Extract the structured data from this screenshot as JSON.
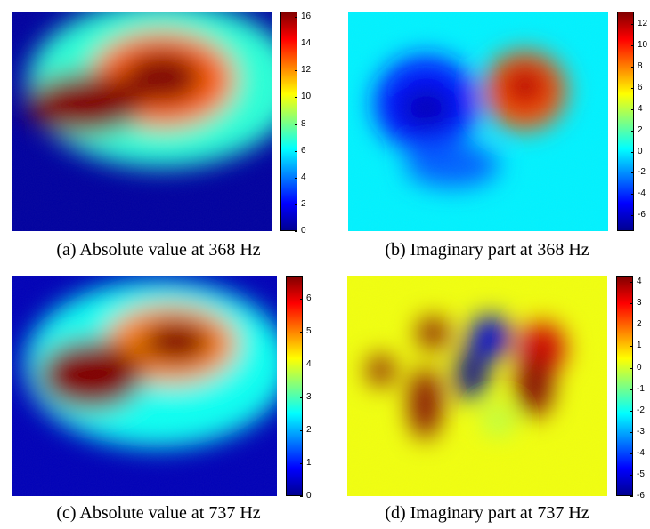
{
  "colormap": [
    "#00008f",
    "#0000ff",
    "#0080ff",
    "#00ffff",
    "#80ff80",
    "#ffff00",
    "#ff8000",
    "#ff0000",
    "#800000"
  ],
  "chart_data": [
    {
      "type": "heatmap",
      "caption": "(a) Absolute value at 368 Hz",
      "colorbar": {
        "min": 0,
        "max": 16.4,
        "ticks": [
          0,
          2,
          4,
          6,
          8,
          10,
          12,
          14,
          16
        ]
      },
      "background_value": 0.3,
      "blobs": [
        {
          "cx": 0.58,
          "cy": 0.33,
          "rx": 0.52,
          "ry": 0.38,
          "v": 6.5
        },
        {
          "cx": 0.58,
          "cy": 0.31,
          "rx": 0.28,
          "ry": 0.22,
          "v": 6
        },
        {
          "cx": 0.58,
          "cy": 0.3,
          "rx": 0.15,
          "ry": 0.12,
          "v": 4
        },
        {
          "cx": 0.28,
          "cy": 0.42,
          "rx": 0.22,
          "ry": 0.14,
          "v": 3
        }
      ]
    },
    {
      "type": "heatmap",
      "caption": "(b) Imaginary part at 368 Hz",
      "colorbar": {
        "min": -7.5,
        "max": 13.2,
        "ticks": [
          -6,
          -4,
          -2,
          0,
          2,
          4,
          6,
          8,
          10,
          12
        ]
      },
      "background_value": 0,
      "blobs": [
        {
          "cx": 0.68,
          "cy": 0.36,
          "rx": 0.16,
          "ry": 0.18,
          "v": 9
        },
        {
          "cx": 0.68,
          "cy": 0.34,
          "rx": 0.09,
          "ry": 0.1,
          "v": 3
        },
        {
          "cx": 0.3,
          "cy": 0.42,
          "rx": 0.2,
          "ry": 0.22,
          "v": -4.5
        },
        {
          "cx": 0.3,
          "cy": 0.44,
          "rx": 0.1,
          "ry": 0.1,
          "v": -2
        },
        {
          "cx": 0.4,
          "cy": 0.7,
          "rx": 0.18,
          "ry": 0.1,
          "v": -1
        }
      ]
    },
    {
      "type": "heatmap",
      "caption": "(c) Absolute value at 737 Hz",
      "colorbar": {
        "min": 0,
        "max": 6.7,
        "ticks": [
          0,
          1,
          2,
          3,
          4,
          5,
          6
        ]
      },
      "background_value": 0.3,
      "blobs": [
        {
          "cx": 0.55,
          "cy": 0.4,
          "rx": 0.5,
          "ry": 0.38,
          "v": 2.3
        },
        {
          "cx": 0.6,
          "cy": 0.31,
          "rx": 0.25,
          "ry": 0.18,
          "v": 2.4
        },
        {
          "cx": 0.62,
          "cy": 0.3,
          "rx": 0.13,
          "ry": 0.1,
          "v": 1.8
        },
        {
          "cx": 0.3,
          "cy": 0.45,
          "rx": 0.2,
          "ry": 0.16,
          "v": 0.8
        }
      ]
    },
    {
      "type": "heatmap",
      "caption": "(d) Imaginary part at 737 Hz",
      "colorbar": {
        "min": -6,
        "max": 4.3,
        "ticks": [
          -6,
          -5,
          -4,
          -3,
          -2,
          -1,
          0,
          1,
          2,
          3,
          4
        ]
      },
      "background_value": 0.3,
      "blobs": [
        {
          "cx": 0.75,
          "cy": 0.33,
          "rx": 0.09,
          "ry": 0.12,
          "v": 3.2
        },
        {
          "cx": 0.72,
          "cy": 0.5,
          "rx": 0.07,
          "ry": 0.14,
          "v": 1.5
        },
        {
          "cx": 0.55,
          "cy": 0.28,
          "rx": 0.08,
          "ry": 0.1,
          "v": -5.5
        },
        {
          "cx": 0.48,
          "cy": 0.45,
          "rx": 0.06,
          "ry": 0.12,
          "v": -2.2
        },
        {
          "cx": 0.33,
          "cy": 0.26,
          "rx": 0.06,
          "ry": 0.07,
          "v": 1.6
        },
        {
          "cx": 0.3,
          "cy": 0.58,
          "rx": 0.06,
          "ry": 0.16,
          "v": 1.8
        },
        {
          "cx": 0.13,
          "cy": 0.43,
          "rx": 0.05,
          "ry": 0.07,
          "v": 1
        },
        {
          "cx": 0.58,
          "cy": 0.66,
          "rx": 0.05,
          "ry": 0.06,
          "v": -0.8
        }
      ]
    }
  ]
}
